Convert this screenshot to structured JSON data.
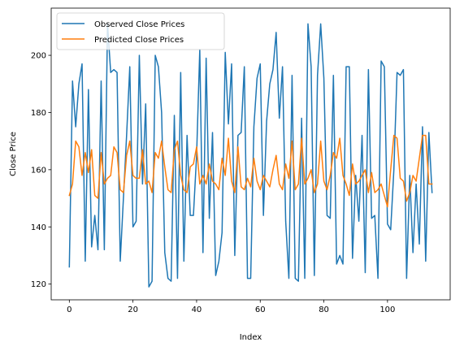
{
  "chart_data": {
    "type": "line",
    "title": "",
    "xlabel": "Index",
    "ylabel": "Close Price",
    "xlim": [
      -5.7,
      119.7
    ],
    "ylim": [
      114.5,
      216.5
    ],
    "xticks": [
      0,
      20,
      40,
      60,
      80,
      100
    ],
    "yticks": [
      120,
      140,
      160,
      180,
      200
    ],
    "grid": false,
    "legend_position": "upper-left",
    "series": [
      {
        "name": "Observed Close Prices",
        "color": "#1f77b4",
        "x": [
          0,
          1,
          2,
          3,
          4,
          5,
          6,
          7,
          8,
          9,
          10,
          11,
          12,
          13,
          14,
          15,
          16,
          17,
          18,
          19,
          20,
          21,
          22,
          23,
          24,
          25,
          26,
          27,
          28,
          29,
          30,
          31,
          32,
          33,
          34,
          35,
          36,
          37,
          38,
          39,
          40,
          41,
          42,
          43,
          44,
          45,
          46,
          47,
          48,
          49,
          50,
          51,
          52,
          53,
          54,
          55,
          56,
          57,
          58,
          59,
          60,
          61,
          62,
          63,
          64,
          65,
          66,
          67,
          68,
          69,
          70,
          71,
          72,
          73,
          74,
          75,
          76,
          77,
          78,
          79,
          80,
          81,
          82,
          83,
          84,
          85,
          86,
          87,
          88,
          89,
          90,
          91,
          92,
          93,
          94,
          95,
          96,
          97,
          98,
          99,
          100,
          101,
          102,
          103,
          104,
          105,
          106,
          107,
          108,
          109,
          110,
          111,
          112,
          113,
          114
        ],
        "values": [
          126,
          191,
          175,
          190,
          197,
          128,
          188,
          133,
          144,
          132,
          191,
          132,
          211,
          194,
          195,
          194,
          128,
          150,
          172,
          196,
          140,
          142,
          200,
          155,
          183,
          119,
          121,
          200,
          196,
          180,
          131,
          122,
          121,
          179,
          122,
          194,
          128,
          172,
          144,
          144,
          165,
          202,
          131,
          199,
          143,
          173,
          123,
          128,
          138,
          201,
          176,
          197,
          130,
          172,
          173,
          196,
          122,
          122,
          175,
          192,
          197,
          144,
          177,
          190,
          195,
          208,
          178,
          196,
          142,
          122,
          193,
          122,
          121,
          178,
          122,
          211,
          196,
          123,
          193,
          211,
          192,
          144,
          143,
          193,
          127,
          130,
          127,
          196,
          196,
          129,
          158,
          142,
          172,
          124,
          195,
          143,
          144,
          122,
          198,
          196,
          141,
          139,
          160,
          194,
          193,
          195,
          122,
          158,
          131,
          155,
          134,
          175,
          128,
          173,
          152
        ]
      },
      {
        "name": "Predicted Close Prices",
        "color": "#ff7f0e",
        "x": [
          0,
          1,
          2,
          3,
          4,
          5,
          6,
          7,
          8,
          9,
          10,
          11,
          12,
          13,
          14,
          15,
          16,
          17,
          18,
          19,
          20,
          21,
          22,
          23,
          24,
          25,
          26,
          27,
          28,
          29,
          30,
          31,
          32,
          33,
          34,
          35,
          36,
          37,
          38,
          39,
          40,
          41,
          42,
          43,
          44,
          45,
          46,
          47,
          48,
          49,
          50,
          51,
          52,
          53,
          54,
          55,
          56,
          57,
          58,
          59,
          60,
          61,
          62,
          63,
          64,
          65,
          66,
          67,
          68,
          69,
          70,
          71,
          72,
          73,
          74,
          75,
          76,
          77,
          78,
          79,
          80,
          81,
          82,
          83,
          84,
          85,
          86,
          87,
          88,
          89,
          90,
          91,
          92,
          93,
          94,
          95,
          96,
          97,
          98,
          99,
          100,
          101,
          102,
          103,
          104,
          105,
          106,
          107,
          108,
          109,
          110,
          111,
          112,
          113,
          114
        ],
        "values": [
          151,
          155,
          170,
          168,
          158,
          166,
          159,
          167,
          151,
          150,
          166,
          155,
          157,
          158,
          168,
          166,
          153,
          152,
          165,
          170,
          158,
          157,
          157,
          167,
          155,
          156,
          152,
          166,
          164,
          170,
          161,
          153,
          152,
          167,
          170,
          158,
          153,
          152,
          161,
          162,
          168,
          155,
          158,
          155,
          162,
          156,
          155,
          153,
          164,
          158,
          171,
          156,
          152,
          168,
          154,
          153,
          157,
          154,
          164,
          156,
          153,
          158,
          156,
          154,
          160,
          165,
          155,
          153,
          162,
          157,
          170,
          153,
          155,
          171,
          155,
          157,
          160,
          152,
          155,
          170,
          156,
          153,
          158,
          166,
          164,
          171,
          158,
          155,
          151,
          162,
          155,
          156,
          158,
          160,
          152,
          159,
          152,
          153,
          155,
          151,
          147,
          160,
          172,
          171,
          157,
          156,
          149,
          152,
          158,
          156,
          164,
          172,
          172,
          155,
          155
        ]
      }
    ]
  }
}
